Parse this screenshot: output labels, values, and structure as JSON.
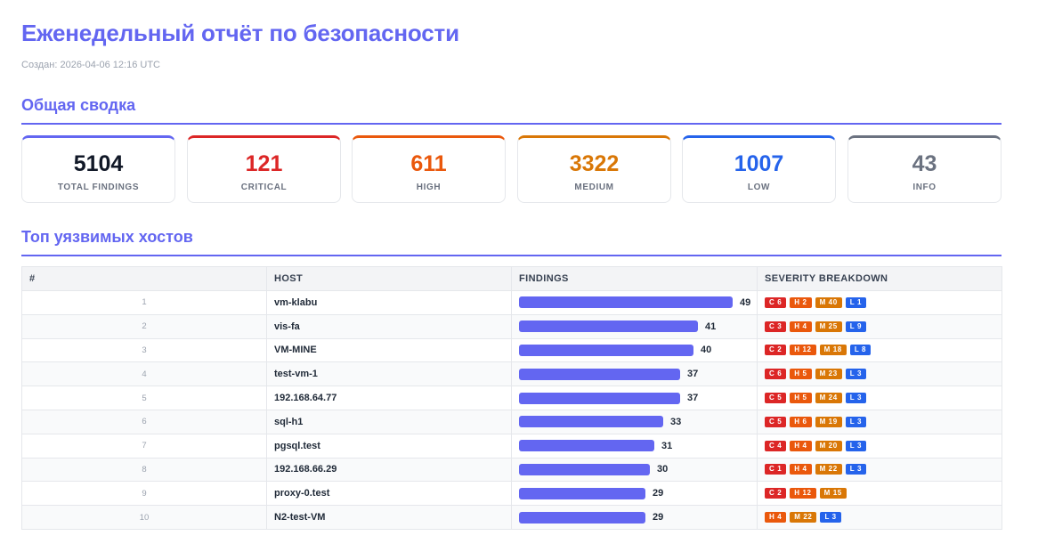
{
  "title": "Еженедельный отчёт по безопасности",
  "created": "Создан: 2026-04-06 12:16 UTC",
  "summary": {
    "heading": "Общая сводка",
    "cards": [
      {
        "value": "5104",
        "label": "TOTAL FINDINGS",
        "color": "#111827",
        "accent": "#6366f1"
      },
      {
        "value": "121",
        "label": "CRITICAL",
        "color": "#dc2626",
        "accent": "#dc2626"
      },
      {
        "value": "611",
        "label": "HIGH",
        "color": "#ea580c",
        "accent": "#ea580c"
      },
      {
        "value": "3322",
        "label": "MEDIUM",
        "color": "#d97706",
        "accent": "#d97706"
      },
      {
        "value": "1007",
        "label": "LOW",
        "color": "#2563eb",
        "accent": "#2563eb"
      },
      {
        "value": "43",
        "label": "INFO",
        "color": "#6b7280",
        "accent": "#6b7280"
      }
    ]
  },
  "hosts": {
    "heading": "Топ уязвимых хостов",
    "columns": [
      "#",
      "HOST",
      "FINDINGS",
      "SEVERITY BREAKDOWN"
    ],
    "max_findings": 49,
    "severity_colors": {
      "C": "#dc2626",
      "H": "#ea580c",
      "M": "#d97706",
      "L": "#2563eb"
    },
    "rows": [
      {
        "n": "1",
        "host": "vm-klabu",
        "findings": 49,
        "breakdown": [
          {
            "s": "C",
            "v": 6
          },
          {
            "s": "H",
            "v": 2
          },
          {
            "s": "M",
            "v": 40
          },
          {
            "s": "L",
            "v": 1
          }
        ]
      },
      {
        "n": "2",
        "host": "vis-fa",
        "findings": 41,
        "breakdown": [
          {
            "s": "C",
            "v": 3
          },
          {
            "s": "H",
            "v": 4
          },
          {
            "s": "M",
            "v": 25
          },
          {
            "s": "L",
            "v": 9
          }
        ]
      },
      {
        "n": "3",
        "host": "VM-MINE",
        "findings": 40,
        "breakdown": [
          {
            "s": "C",
            "v": 2
          },
          {
            "s": "H",
            "v": 12
          },
          {
            "s": "M",
            "v": 18
          },
          {
            "s": "L",
            "v": 8
          }
        ]
      },
      {
        "n": "4",
        "host": "test-vm-1",
        "findings": 37,
        "breakdown": [
          {
            "s": "C",
            "v": 6
          },
          {
            "s": "H",
            "v": 5
          },
          {
            "s": "M",
            "v": 23
          },
          {
            "s": "L",
            "v": 3
          }
        ]
      },
      {
        "n": "5",
        "host": "192.168.64.77",
        "findings": 37,
        "breakdown": [
          {
            "s": "C",
            "v": 5
          },
          {
            "s": "H",
            "v": 5
          },
          {
            "s": "M",
            "v": 24
          },
          {
            "s": "L",
            "v": 3
          }
        ]
      },
      {
        "n": "6",
        "host": "sql-h1",
        "findings": 33,
        "breakdown": [
          {
            "s": "C",
            "v": 5
          },
          {
            "s": "H",
            "v": 6
          },
          {
            "s": "M",
            "v": 19
          },
          {
            "s": "L",
            "v": 3
          }
        ]
      },
      {
        "n": "7",
        "host": "pgsql.test",
        "findings": 31,
        "breakdown": [
          {
            "s": "C",
            "v": 4
          },
          {
            "s": "H",
            "v": 4
          },
          {
            "s": "M",
            "v": 20
          },
          {
            "s": "L",
            "v": 3
          }
        ]
      },
      {
        "n": "8",
        "host": "192.168.66.29",
        "findings": 30,
        "breakdown": [
          {
            "s": "C",
            "v": 1
          },
          {
            "s": "H",
            "v": 4
          },
          {
            "s": "M",
            "v": 22
          },
          {
            "s": "L",
            "v": 3
          }
        ]
      },
      {
        "n": "9",
        "host": "proxy-0.test",
        "findings": 29,
        "breakdown": [
          {
            "s": "C",
            "v": 2
          },
          {
            "s": "H",
            "v": 12
          },
          {
            "s": "M",
            "v": 15
          }
        ]
      },
      {
        "n": "10",
        "host": "N2-test-VM",
        "findings": 29,
        "breakdown": [
          {
            "s": "H",
            "v": 4
          },
          {
            "s": "M",
            "v": 22
          },
          {
            "s": "L",
            "v": 3
          }
        ]
      }
    ]
  }
}
